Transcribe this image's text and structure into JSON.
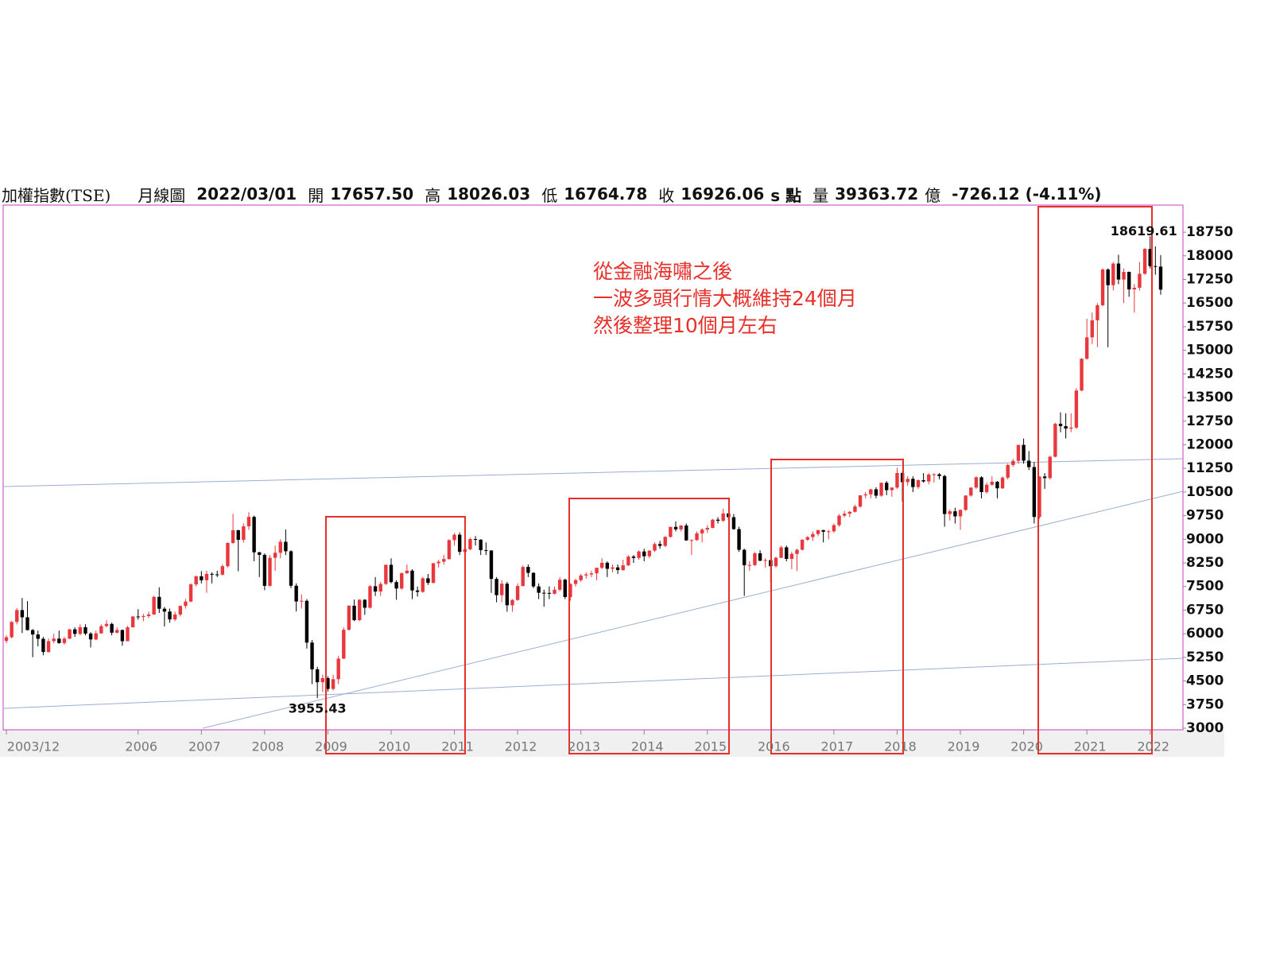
{
  "header": {
    "name": "加權指數(TSE)",
    "period": "月線圖",
    "date": "2022/03/01",
    "open_label": "開",
    "open": "17657.50",
    "high_label": "高",
    "high": "18026.03",
    "low_label": "低",
    "low": "16764.78",
    "close_label": "收",
    "close": "16926.06",
    "close_unit": "s 點",
    "volume_label": "量",
    "volume": "39363.72",
    "volume_unit": "億",
    "change": "-726.12 (-4.11%)"
  },
  "chart_data": {
    "type": "candlestick",
    "annotation": [
      "從金融海嘯之後",
      "一波多頭行情大概維持24個月",
      "然後整理10個月左右"
    ],
    "up_color": "#e8383d",
    "down_color": "#000000",
    "grid": false,
    "ylim": [
      3000,
      19560
    ],
    "yticks": [
      3000,
      3750,
      4500,
      5250,
      6000,
      6750,
      7500,
      8250,
      9000,
      9750,
      10500,
      11250,
      12000,
      12750,
      13500,
      14250,
      15000,
      15750,
      16500,
      17250,
      18000,
      18750
    ],
    "xticks": [
      {
        "value": 0,
        "label": "2003/12"
      },
      {
        "value": 25,
        "label": "2006"
      },
      {
        "value": 37,
        "label": "2007"
      },
      {
        "value": 49,
        "label": "2008"
      },
      {
        "value": 61,
        "label": "2009"
      },
      {
        "value": 73,
        "label": "2010"
      },
      {
        "value": 85,
        "label": "2011"
      },
      {
        "value": 97,
        "label": "2012"
      },
      {
        "value": 109,
        "label": "2013"
      },
      {
        "value": 121,
        "label": "2014"
      },
      {
        "value": 133,
        "label": "2015"
      },
      {
        "value": 145,
        "label": "2016"
      },
      {
        "value": 157,
        "label": "2017"
      },
      {
        "value": 169,
        "label": "2018"
      },
      {
        "value": 181,
        "label": "2019"
      },
      {
        "value": 193,
        "label": "2020"
      },
      {
        "value": 205,
        "label": "2021"
      },
      {
        "value": 217,
        "label": "2022"
      }
    ],
    "extreme_labels": [
      "chart_data.candles.low.59",
      "chart_data.candles.high.217"
    ],
    "candles": {
      "open": [
        5771,
        5890,
        6375,
        6751,
        6522,
        6117,
        5977,
        5839,
        5420,
        5765,
        5845,
        5706,
        5845,
        6140,
        5995,
        6207,
        6006,
        5819,
        6012,
        6242,
        6312,
        6033,
        6119,
        5764,
        6203,
        6548,
        6532,
        6562,
        6613,
        7171,
        6794,
        6704,
        6455,
        6611,
        6883,
        7021,
        7567,
        7823,
        7699,
        7901,
        7884,
        7875,
        8145,
        8883,
        9287,
        8982,
        9411,
        9711,
        8586,
        8506,
        7521,
        8412,
        8572,
        8920,
        8619,
        7524,
        7024,
        7046,
        5719,
        4871,
        4460,
        4591,
        4248,
        4557,
        5210,
        6127,
        6890,
        6432,
        7078,
        6826,
        7509,
        7340,
        7582,
        8188,
        7640,
        7436,
        7920,
        8004,
        7374,
        7329,
        7760,
        7616,
        8238,
        8287,
        8372,
        8973,
        9145,
        8600,
        8683,
        9008,
        8988,
        8653,
        8644,
        7741,
        7225,
        7588,
        6904,
        7072,
        7517,
        8121,
        7933,
        7502,
        7301,
        7296,
        7270,
        7398,
        7715,
        7166,
        7581,
        7700,
        7850,
        7882,
        7919,
        8093,
        8254,
        8062,
        8107,
        8022,
        8173,
        8450,
        8407,
        8612,
        8462,
        8639,
        8849,
        8791,
        9075,
        9393,
        9315,
        9436,
        8966,
        8974,
        9187,
        9307,
        9361,
        9622,
        9586,
        9820,
        9701,
        9323,
        8665,
        8175,
        8181,
        8554,
        8320,
        8338,
        8145,
        8411,
        8744,
        8377,
        8535,
        8666,
        8984,
        9068,
        9167,
        9290,
        9240,
        9253,
        9448,
        9750,
        9812,
        9872,
        10040,
        10395,
        10427,
        10586,
        10384,
        10793,
        10560,
        10642,
        11103,
        10815,
        10919,
        10657,
        10875,
        10836,
        11057,
        11063,
        11006,
        9802,
        9888,
        9727,
        9932,
        10389,
        10641,
        10967,
        10498,
        10730,
        10824,
        10618,
        10956,
        11358,
        11489,
        11997,
        11495,
        11292,
        9708,
        10992,
        10943,
        11621,
        12665,
        12592,
        12515,
        12546,
        13722,
        14732,
        15410,
        15953,
        16431,
        17567,
        17068,
        17755,
        17247,
        17490,
        16934,
        16987,
        17428,
        18219,
        17674,
        17657.5
      ],
      "high": [
        5950,
        6400,
        6815,
        7135,
        7034,
        6150,
        6100,
        5900,
        5850,
        6000,
        6100,
        5900,
        6150,
        6200,
        6300,
        6300,
        6050,
        6100,
        6300,
        6430,
        6350,
        6200,
        6130,
        6250,
        6560,
        6780,
        6630,
        6700,
        7200,
        7474,
        6850,
        6800,
        6700,
        6900,
        7100,
        7600,
        7850,
        7990,
        8000,
        7950,
        8000,
        8200,
        8900,
        9807,
        9300,
        9500,
        9860,
        9750,
        8600,
        8550,
        8500,
        8800,
        9000,
        9309,
        8650,
        7600,
        7250,
        7100,
        5800,
        4950,
        4700,
        4650,
        4700,
        5300,
        6200,
        6900,
        7084,
        7100,
        7100,
        7550,
        7800,
        7650,
        8200,
        8395,
        7700,
        7950,
        8200,
        8050,
        7500,
        7800,
        7900,
        8250,
        8350,
        8500,
        9000,
        9200,
        9220,
        8750,
        9050,
        9100,
        9000,
        8900,
        8650,
        7800,
        7700,
        7650,
        7100,
        7600,
        8170,
        8200,
        7950,
        7600,
        7400,
        7500,
        7500,
        7800,
        7750,
        7600,
        7750,
        7900,
        7950,
        8000,
        8100,
        8400,
        8300,
        8200,
        8200,
        8350,
        8500,
        8500,
        8650,
        8700,
        8650,
        8900,
        8950,
        9100,
        9400,
        9569,
        9450,
        9500,
        9000,
        9250,
        9350,
        9450,
        9650,
        9700,
        9973,
        9850,
        9800,
        9400,
        8700,
        8300,
        8600,
        8650,
        8400,
        8350,
        8450,
        8800,
        8800,
        8600,
        8700,
        9000,
        9100,
        9250,
        9300,
        9300,
        9300,
        9500,
        9800,
        9900,
        9900,
        10100,
        10400,
        10500,
        10600,
        10650,
        10800,
        10850,
        10650,
        11270,
        11150,
        11000,
        11000,
        10900,
        11100,
        11100,
        11100,
        11100,
        11050,
        9950,
        10000,
        9950,
        10400,
        10650,
        11000,
        11000,
        10800,
        11000,
        10850,
        11000,
        11400,
        11550,
        12000,
        12198,
        11800,
        11450,
        11000,
        11100,
        11650,
        12700,
        13031,
        13000,
        13000,
        13800,
        14750,
        16000,
        16200,
        16500,
        17600,
        17600,
        17800,
        18034,
        17600,
        17500,
        17100,
        17800,
        18250,
        18619.61,
        18300,
        18026.03
      ],
      "low": [
        5700,
        5850,
        6300,
        6020,
        6100,
        5255,
        5600,
        5316,
        5400,
        5700,
        5680,
        5650,
        5830,
        5900,
        5950,
        5950,
        5565,
        5800,
        6000,
        6200,
        5950,
        6000,
        5620,
        5760,
        6200,
        6450,
        6400,
        6500,
        6600,
        6660,
        6232,
        6350,
        6400,
        6550,
        6800,
        7000,
        7500,
        7600,
        7300,
        7600,
        7800,
        7850,
        8100,
        8850,
        7987,
        8900,
        9300,
        8300,
        7800,
        7384,
        7500,
        8000,
        8400,
        8500,
        7450,
        6708,
        6800,
        5530,
        4400,
        3955.43,
        4150,
        4164,
        4200,
        4400,
        5200,
        6100,
        6400,
        6400,
        6600,
        6800,
        7200,
        7200,
        7550,
        7600,
        7080,
        7400,
        7900,
        7100,
        7180,
        7300,
        7550,
        7600,
        8100,
        8200,
        8350,
        8800,
        8500,
        8300,
        8650,
        8800,
        8500,
        8500,
        7300,
        7000,
        7000,
        6700,
        6700,
        7050,
        7500,
        7800,
        7450,
        7100,
        6857,
        7100,
        7250,
        7350,
        7100,
        7050,
        7500,
        7650,
        7750,
        7800,
        7700,
        8050,
        7800,
        7950,
        7900,
        8000,
        8150,
        8250,
        8350,
        8300,
        8400,
        8600,
        8700,
        8750,
        9050,
        9250,
        9250,
        8950,
        8500,
        8950,
        8900,
        9200,
        9350,
        9500,
        9550,
        9600,
        9300,
        8600,
        7203,
        8000,
        8150,
        8300,
        8100,
        7627,
        8100,
        8400,
        8300,
        8050,
        8000,
        8650,
        8950,
        8950,
        9100,
        8900,
        9000,
        9200,
        9400,
        9700,
        9700,
        9850,
        10000,
        10300,
        10300,
        10300,
        10350,
        10400,
        10350,
        10600,
        10190,
        10700,
        10500,
        10600,
        10800,
        10750,
        10800,
        10900,
        9400,
        9600,
        9500,
        9300,
        9900,
        10350,
        10600,
        10300,
        10450,
        10700,
        10300,
        10600,
        10900,
        11300,
        11400,
        11400,
        11200,
        9500,
        9650,
        10600,
        10900,
        11600,
        12400,
        12200,
        12400,
        12500,
        13700,
        14700,
        15200,
        15100,
        16400,
        15100,
        16900,
        17100,
        16500,
        16700,
        16200,
        16900,
        17400,
        17600,
        17400,
        16764.78
      ],
      "close": [
        5890,
        6375,
        6751,
        6522,
        6117,
        5977,
        5839,
        5420,
        5765,
        5845,
        5706,
        5845,
        6140,
        5995,
        6207,
        6006,
        5819,
        6012,
        6242,
        6312,
        6033,
        6119,
        5764,
        6203,
        6548,
        6532,
        6562,
        6613,
        7171,
        6794,
        6704,
        6455,
        6611,
        6883,
        7021,
        7567,
        7823,
        7699,
        7901,
        7884,
        7875,
        8145,
        8883,
        9287,
        8982,
        9411,
        9711,
        8586,
        8506,
        7521,
        8412,
        8572,
        8920,
        8619,
        7524,
        7024,
        7046,
        5719,
        4871,
        4460,
        4591,
        4248,
        4557,
        5210,
        6127,
        6890,
        6432,
        7078,
        6826,
        7509,
        7340,
        7582,
        8188,
        7640,
        7436,
        7920,
        8004,
        7374,
        7329,
        7760,
        7616,
        8238,
        8287,
        8372,
        8973,
        9145,
        8600,
        8683,
        9008,
        8988,
        8653,
        8644,
        7741,
        7225,
        7588,
        6904,
        7072,
        7517,
        8121,
        7933,
        7502,
        7301,
        7296,
        7270,
        7398,
        7715,
        7166,
        7581,
        7700,
        7850,
        7882,
        7919,
        8093,
        8254,
        8062,
        8107,
        8022,
        8173,
        8450,
        8407,
        8612,
        8462,
        8639,
        8849,
        8791,
        9075,
        9393,
        9315,
        9436,
        8966,
        8974,
        9187,
        9307,
        9361,
        9622,
        9586,
        9820,
        9701,
        9323,
        8665,
        8175,
        8181,
        8554,
        8320,
        8338,
        8145,
        8411,
        8744,
        8377,
        8535,
        8666,
        8984,
        9068,
        9167,
        9290,
        9240,
        9253,
        9448,
        9750,
        9812,
        9872,
        10040,
        10395,
        10427,
        10586,
        10384,
        10793,
        10560,
        10642,
        11103,
        10815,
        10919,
        10657,
        10875,
        10836,
        11057,
        11063,
        11006,
        9802,
        9888,
        9727,
        9932,
        10389,
        10641,
        10967,
        10498,
        10730,
        10824,
        10618,
        10956,
        11358,
        11489,
        11997,
        11495,
        11292,
        9708,
        10992,
        10943,
        11621,
        12665,
        12592,
        12515,
        12546,
        13722,
        14732,
        15410,
        15953,
        16431,
        17567,
        17068,
        17755,
        17247,
        17490,
        16934,
        16987,
        17428,
        18219,
        17674,
        17657.5,
        16926.06
      ]
    }
  }
}
